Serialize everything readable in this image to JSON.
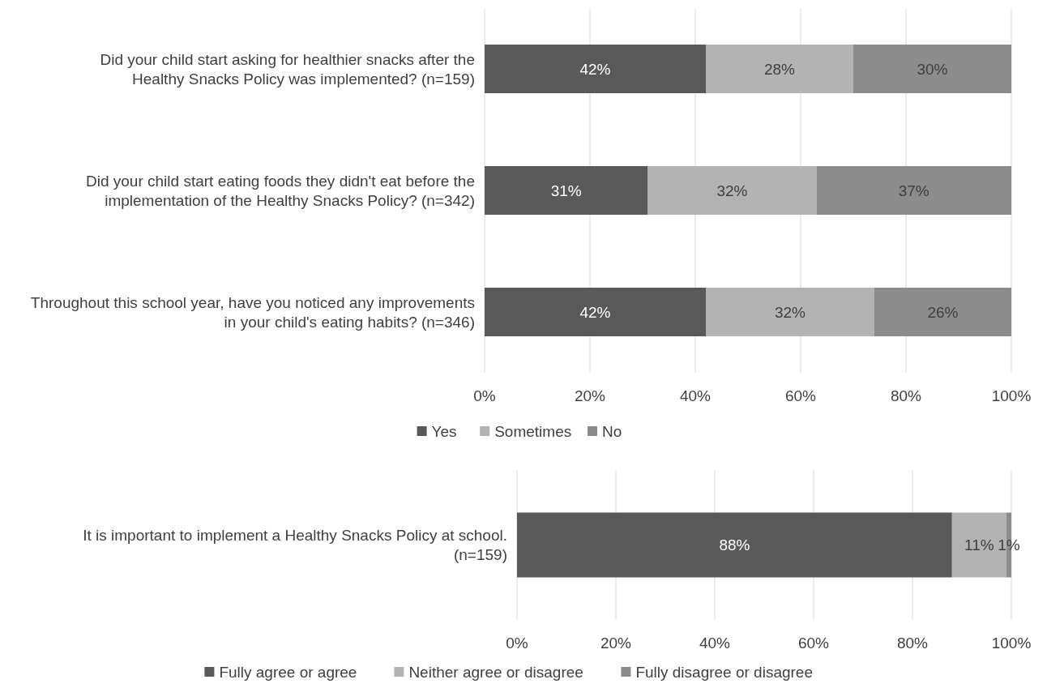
{
  "chart_data": [
    {
      "type": "bar",
      "orientation": "horizontal",
      "stacked": true,
      "categories": [
        "Did your child start asking for healthier snacks after the Healthy Snacks Policy was implemented? (n=159)",
        "Did your child start eating foods they didn't eat before the implementation of the Healthy Snacks Policy? (n=342)",
        "Throughout this school year, have you noticed any improvements in your child's eating habits? (n=346)"
      ],
      "series": [
        {
          "name": "Yes",
          "color": "#595959",
          "values": [
            42,
            31,
            42
          ],
          "value_labels": [
            "42%",
            "31%",
            "42%"
          ]
        },
        {
          "name": "Sometimes",
          "color": "#b3b3b3",
          "values": [
            28,
            32,
            32
          ],
          "value_labels": [
            "28%",
            "32%",
            "32%"
          ]
        },
        {
          "name": "No",
          "color": "#8c8c8c",
          "values": [
            30,
            37,
            26
          ],
          "value_labels": [
            "30%",
            "37%",
            "26%"
          ]
        }
      ],
      "xlim": [
        0,
        100
      ],
      "xticks": [
        {
          "value": 0,
          "label": "0%"
        },
        {
          "value": 20,
          "label": "20%"
        },
        {
          "value": 40,
          "label": "40%"
        },
        {
          "value": 60,
          "label": "60%"
        },
        {
          "value": 80,
          "label": "80%"
        },
        {
          "value": 100,
          "label": "100%"
        }
      ],
      "grid": "x",
      "legend": "bottom"
    },
    {
      "type": "bar",
      "orientation": "horizontal",
      "stacked": true,
      "categories": [
        "It is important to implement a Healthy Snacks Policy at school. (n=159)"
      ],
      "series": [
        {
          "name": "Fully agree or agree",
          "color": "#595959",
          "values": [
            88
          ],
          "value_labels": [
            "88%"
          ]
        },
        {
          "name": "Neither agree or disagree",
          "color": "#b3b3b3",
          "values": [
            11
          ],
          "value_labels": [
            "11%"
          ]
        },
        {
          "name": "Fully disagree or disagree",
          "color": "#8c8c8c",
          "values": [
            1
          ],
          "value_labels": [
            "1%"
          ]
        }
      ],
      "xlim": [
        0,
        100
      ],
      "xticks": [
        {
          "value": 0,
          "label": "0%"
        },
        {
          "value": 20,
          "label": "20%"
        },
        {
          "value": 40,
          "label": "40%"
        },
        {
          "value": 60,
          "label": "60%"
        },
        {
          "value": 80,
          "label": "80%"
        },
        {
          "value": 100,
          "label": "100%"
        }
      ],
      "grid": "x",
      "legend": "bottom"
    }
  ]
}
